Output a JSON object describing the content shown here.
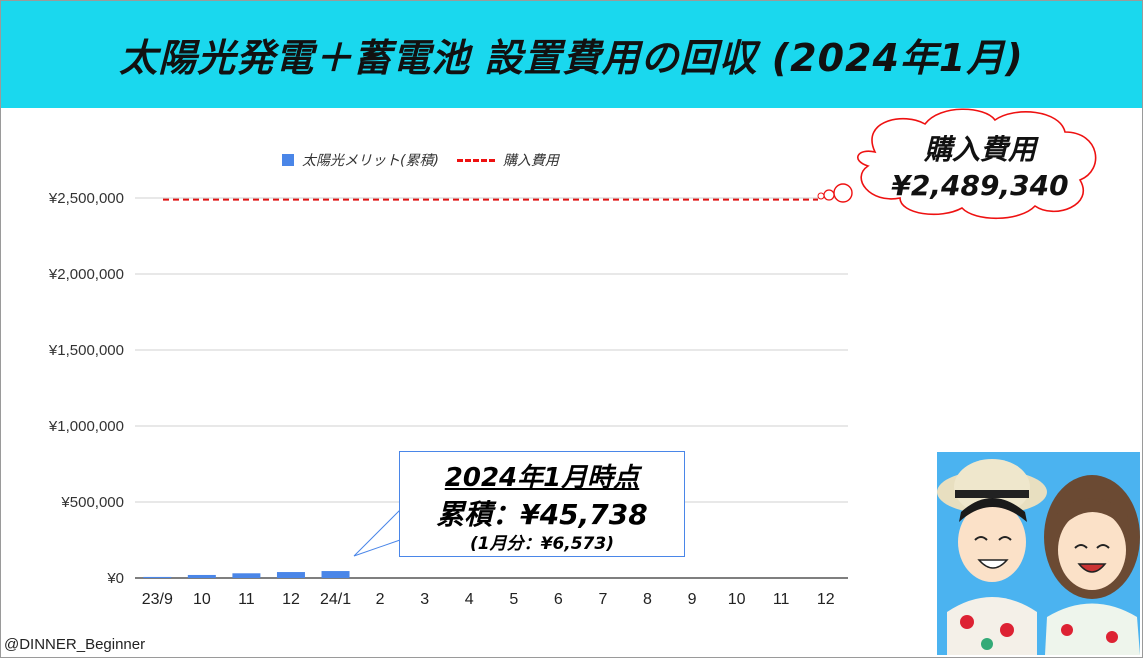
{
  "title": "太陽光発電＋蓄電池 設置費用の回収 (2024年1月)",
  "credit": "@DINNER_Beginner",
  "legend": {
    "bar": "太陽光メリット(累積)",
    "line": "購入費用"
  },
  "callout": {
    "line1": "2024年1月時点",
    "line2": "累積：¥45,738",
    "line3": "(1月分：¥6,573)"
  },
  "cloud": {
    "line1": "購入費用",
    "line2": "¥2,489,340"
  },
  "colors": {
    "header": "#1ad8ee",
    "bar": "#4a86e8",
    "line": "#e11111"
  },
  "chart_data": {
    "type": "bar",
    "categories": [
      "23/9",
      "10",
      "11",
      "12",
      "24/1",
      "2",
      "3",
      "4",
      "5",
      "6",
      "7",
      "8",
      "9",
      "10",
      "11",
      "12"
    ],
    "series": [
      {
        "name": "太陽光メリット(累積)",
        "type": "bar",
        "values": [
          7000,
          20000,
          31000,
          39165,
          45738,
          null,
          null,
          null,
          null,
          null,
          null,
          null,
          null,
          null,
          null,
          null
        ]
      },
      {
        "name": "購入費用",
        "type": "line",
        "style": "dashed",
        "value": 2489340
      }
    ],
    "yticks": [
      "¥0",
      "¥500,000",
      "¥1,000,000",
      "¥1,500,000",
      "¥2,000,000",
      "¥2,500,000"
    ],
    "ylim": [
      0,
      2500000
    ],
    "grid": true,
    "legend_position": "top"
  }
}
